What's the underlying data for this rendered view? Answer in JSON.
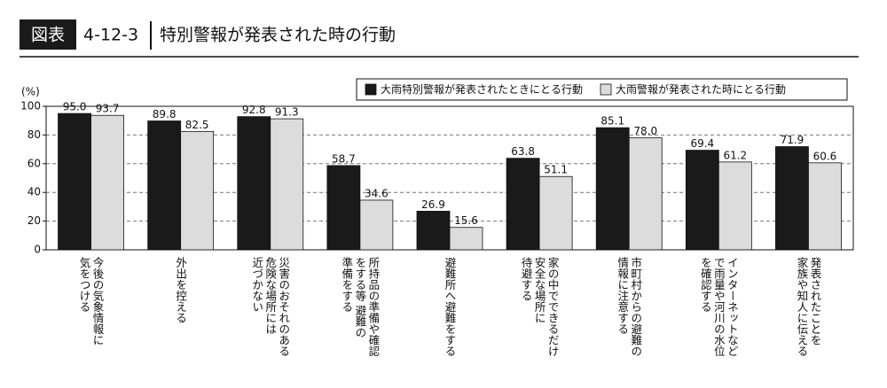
{
  "header": {
    "badge": "図表",
    "number": "4-12-3"
  },
  "chart_data": {
    "type": "bar",
    "title": "特別警報が発表された時の行動",
    "y_label": "(%)",
    "categories": [
      [
        "今後の気象情報に",
        "気をつける"
      ],
      [
        "外出を控える"
      ],
      [
        "災害のおそれのある",
        "危険な場所には",
        "近づかない"
      ],
      [
        "所持品の準備や確認",
        "をする等 避難の",
        "準備をする"
      ],
      [
        "避難所へ避難をする"
      ],
      [
        "家の中でできるだけ",
        "安全な場所に",
        "待避する"
      ],
      [
        "市町村からの避難の",
        "情報に注意する"
      ],
      [
        "インターネットなど",
        "で雨量や河川の水位",
        "を確認する"
      ],
      [
        "発表されたことを",
        "家族や知人に伝える"
      ]
    ],
    "series": [
      {
        "name": "大雨特別警報が発表されたときにとる行動",
        "color": "#1a1a1a",
        "values": [
          95.0,
          89.8,
          92.8,
          58.7,
          26.9,
          63.8,
          85.1,
          69.4,
          71.9
        ],
        "value_labels": [
          "95.0",
          "89.8",
          "92.8",
          "58.7",
          "26.9",
          "63.8",
          "85.1",
          "69.4",
          "71.9"
        ]
      },
      {
        "name": "大雨警報が発表された時にとる行動",
        "color": "#dcdcdc",
        "values": [
          93.7,
          82.5,
          91.3,
          34.6,
          15.6,
          51.1,
          78.0,
          61.2,
          60.6
        ],
        "value_labels": [
          "93.7",
          "82.5",
          "91.3",
          "34.6",
          "15.6",
          "51.1",
          "78.0",
          "61.2",
          "60.6"
        ]
      }
    ],
    "ylim": [
      0,
      100
    ],
    "yticks": [
      0,
      20,
      40,
      60,
      80,
      100
    ],
    "grid": true,
    "legend": "top-right"
  }
}
